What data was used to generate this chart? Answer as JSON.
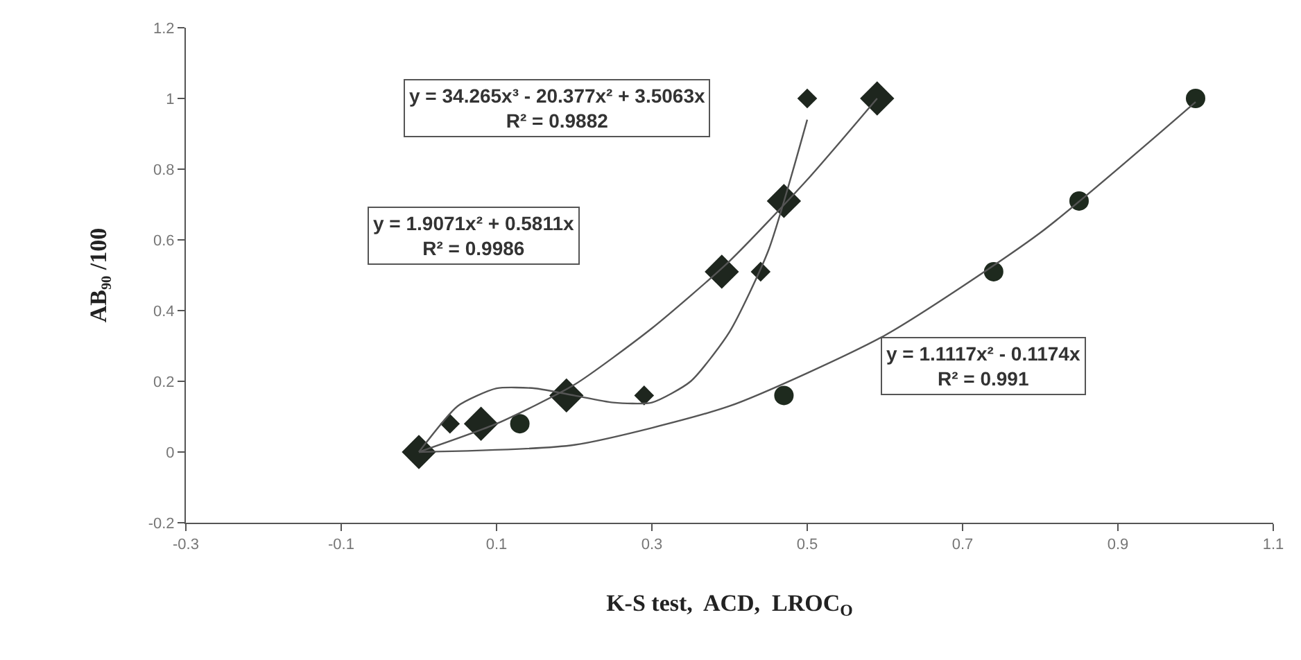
{
  "chart_data": {
    "type": "scatter",
    "xlabel": "K-S test,  ACD,  LROC$_{O}$",
    "ylabel": "AB₉₀ /100",
    "xlim": [
      -0.3,
      1.1
    ],
    "xticks": [
      -0.3,
      -0.1,
      0.1,
      0.3,
      0.5,
      0.7,
      0.9,
      1.1
    ],
    "ylim": [
      -0.2,
      1.2
    ],
    "yticks": [
      -0.2,
      0,
      0.2,
      0.4,
      0.6,
      0.8,
      1,
      1.2
    ],
    "series": [
      {
        "marker": "diamond",
        "color": "#1e261e",
        "x": [
          0,
          0.08,
          0.19,
          0.39,
          0.47,
          0.59
        ],
        "values": [
          0,
          0.08,
          0.16,
          0.51,
          0.71,
          1.0
        ]
      },
      {
        "marker": "diamond",
        "color": "#1e261e",
        "x": [
          0.04,
          0.29,
          0.44,
          0.5
        ],
        "values": [
          0.08,
          0.16,
          0.51,
          1.0
        ]
      },
      {
        "marker": "circle",
        "color": "#1e2a1e",
        "x": [
          0.13,
          0.47,
          0.74,
          0.85,
          1.0
        ],
        "values": [
          0.08,
          0.16,
          0.51,
          0.71,
          1.0
        ]
      },
      {
        "type": "line",
        "marker": "none",
        "line_style": "solid",
        "color": "#555555",
        "x": [
          0,
          0.1,
          0.2,
          0.3,
          0.4,
          0.5,
          0.59
        ],
        "values": [
          0,
          0.08,
          0.19,
          0.35,
          0.54,
          0.77,
          1.0
        ]
      },
      {
        "type": "line",
        "marker": "none",
        "line_style": "solid",
        "color": "#555555",
        "x": [
          0,
          0.05,
          0.1,
          0.15,
          0.2,
          0.25,
          0.3,
          0.35,
          0.4,
          0.45,
          0.5
        ],
        "values": [
          0,
          0.13,
          0.18,
          0.18,
          0.16,
          0.14,
          0.14,
          0.2,
          0.34,
          0.57,
          0.94
        ]
      },
      {
        "type": "line",
        "marker": "none",
        "line_style": "solid",
        "color": "#555555",
        "x": [
          0,
          0.2,
          0.4,
          0.6,
          0.8,
          1.0
        ],
        "values": [
          0,
          0.02,
          0.13,
          0.33,
          0.62,
          0.99
        ]
      }
    ],
    "annotations": [
      "y = 34.265x³ - 20.377x² + 3.5063x\nR² = 0.9882",
      "y = 1.9071x² + 0.5811x\nR² = 0.9986",
      "y = 1.1117x² - 0.1174x\nR² = 0.991"
    ]
  }
}
